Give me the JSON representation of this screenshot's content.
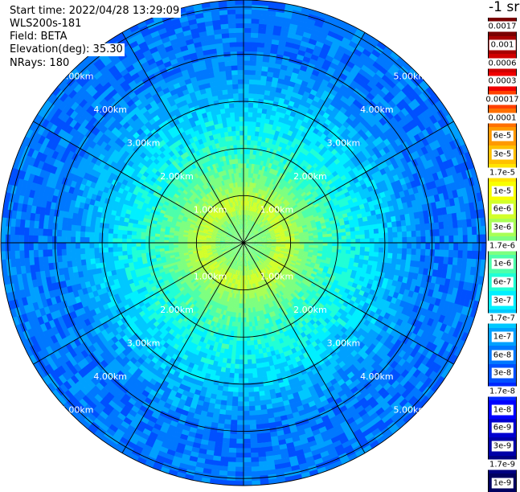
{
  "info": {
    "start_time": "Start time: 2022/04/28 13:29:09",
    "instrument": "WLS200s-181",
    "field": "Field: BETA",
    "elevation": "Elevation(deg): 35.30",
    "nrays": "NRays: 180"
  },
  "colorbar": {
    "unit_label": "-1 sr",
    "levels": [
      {
        "label": "0.0017",
        "color": "#7a0000"
      },
      {
        "label": "0.001",
        "color": "#a80000"
      },
      {
        "label": "0.0006",
        "color": "#d00000"
      },
      {
        "label": "0.0003",
        "color": "#f00000"
      },
      {
        "label": "0.00017",
        "color": "#ff4000"
      },
      {
        "label": "0.0001",
        "color": "#ff7000"
      },
      {
        "label": "6e-5",
        "color": "#ff9900"
      },
      {
        "label": "3e-5",
        "color": "#ffc000"
      },
      {
        "label": "1.7e-5",
        "color": "#ffe400"
      },
      {
        "label": "1e-5",
        "color": "#f8ff00"
      },
      {
        "label": "6e-6",
        "color": "#d2ff2a"
      },
      {
        "label": "3e-6",
        "color": "#a8ff55"
      },
      {
        "label": "1.7e-6",
        "color": "#7dff80"
      },
      {
        "label": "1e-6",
        "color": "#4dffaa"
      },
      {
        "label": "6e-7",
        "color": "#20ffd6"
      },
      {
        "label": "3e-7",
        "color": "#00f0ff"
      },
      {
        "label": "1.7e-7",
        "color": "#00c8ff"
      },
      {
        "label": "1e-7",
        "color": "#00a0ff"
      },
      {
        "label": "6e-8",
        "color": "#0078ff"
      },
      {
        "label": "3e-8",
        "color": "#0050ff"
      },
      {
        "label": "1.7e-8",
        "color": "#0028ff"
      },
      {
        "label": "1e-8",
        "color": "#0000ff"
      },
      {
        "label": "6e-9",
        "color": "#0000d0"
      },
      {
        "label": "3e-9",
        "color": "#0000a8"
      },
      {
        "label": "1.7e-9",
        "color": "#000080"
      },
      {
        "label": "1e-9",
        "color": "#000060"
      }
    ]
  },
  "chart_data": {
    "type": "heatmap",
    "projection": "polar PPI",
    "range_rings_km": [
      1,
      2,
      3,
      4,
      5
    ],
    "ring_labels": [
      "1.00km",
      "2.00km",
      "3.00km",
      "4.00km",
      "5.00km"
    ],
    "max_range_km": 5.15,
    "azimuth_gridlines_deg": [
      0,
      30,
      60,
      90,
      120,
      150,
      180,
      210,
      240,
      270,
      300,
      330
    ],
    "n_rays": 180,
    "field": "BETA",
    "elevation_deg": 35.3,
    "radial_profile": [
      {
        "range_km": 0.0,
        "value": "1.7e-6"
      },
      {
        "range_km": 0.5,
        "value": "1.7e-6"
      },
      {
        "range_km": 0.8,
        "value": "6e-6"
      },
      {
        "range_km": 1.3,
        "value": "1.7e-6"
      },
      {
        "range_km": 2.0,
        "value": "6e-7"
      },
      {
        "range_km": 3.0,
        "value": "1.7e-7"
      },
      {
        "range_km": 4.0,
        "value": "6e-8"
      },
      {
        "range_km": 5.0,
        "value": "6e-8"
      }
    ]
  }
}
